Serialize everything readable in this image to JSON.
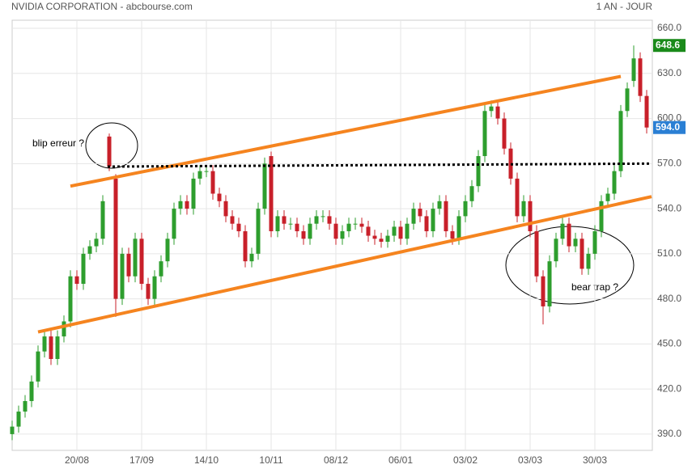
{
  "chart_data": {
    "type": "candlestick",
    "title": "NVIDIA CORPORATION - abcbourse.com",
    "subtitle": "1 AN - JOUR",
    "categories": [
      null,
      null,
      null,
      null,
      null,
      null,
      null,
      null,
      null,
      null,
      "20/08",
      null,
      null,
      null,
      null,
      null,
      null,
      null,
      null,
      null,
      "17/09",
      null,
      null,
      null,
      null,
      null,
      null,
      null,
      null,
      null,
      "14/10",
      null,
      null,
      null,
      null,
      null,
      null,
      null,
      null,
      null,
      "10/11",
      null,
      null,
      null,
      null,
      null,
      null,
      null,
      null,
      null,
      "08/12",
      null,
      null,
      null,
      null,
      null,
      null,
      null,
      null,
      null,
      "06/01",
      null,
      null,
      null,
      null,
      null,
      null,
      null,
      null,
      null,
      "03/02",
      null,
      null,
      null,
      null,
      null,
      null,
      null,
      null,
      null,
      "03/03",
      null,
      null,
      null,
      null,
      null,
      null,
      null,
      null,
      null,
      "30/03",
      null,
      null,
      null,
      null,
      null,
      null,
      null,
      null
    ],
    "open": [
      390,
      395,
      405,
      412,
      425,
      445,
      455,
      440,
      455,
      465,
      495,
      490,
      510,
      515,
      520,
      588,
      560,
      480,
      510,
      495,
      520,
      490,
      480,
      495,
      505,
      520,
      540,
      545,
      540,
      560,
      565,
      565,
      550,
      545,
      535,
      530,
      525,
      505,
      510,
      540,
      575,
      525,
      535,
      530,
      530,
      525,
      520,
      530,
      535,
      535,
      530,
      520,
      525,
      530,
      530,
      528,
      522,
      520,
      518,
      522,
      528,
      520,
      530,
      540,
      535,
      525,
      540,
      545,
      525,
      520,
      535,
      545,
      555,
      575,
      605,
      608,
      600,
      580,
      560,
      535,
      545,
      525,
      495,
      475,
      505,
      520,
      530,
      515,
      520,
      500,
      510,
      525,
      545,
      550,
      565,
      605,
      625,
      640,
      615
    ],
    "high": [
      399,
      409,
      416,
      429,
      449,
      459,
      459,
      459,
      469,
      499,
      499,
      514,
      519,
      524,
      549,
      590,
      563,
      514,
      514,
      524,
      524,
      494,
      499,
      509,
      524,
      544,
      549,
      549,
      564,
      569,
      569,
      569,
      554,
      549,
      539,
      534,
      529,
      514,
      544,
      574,
      578,
      539,
      539,
      534,
      534,
      529,
      534,
      539,
      539,
      539,
      534,
      529,
      534,
      534,
      534,
      532,
      526,
      524,
      526,
      532,
      532,
      534,
      544,
      544,
      539,
      544,
      549,
      549,
      529,
      539,
      549,
      559,
      579,
      609,
      612,
      612,
      604,
      584,
      564,
      549,
      549,
      529,
      499,
      509,
      524,
      534,
      534,
      524,
      524,
      514,
      529,
      549,
      554,
      569,
      609,
      624,
      648.6,
      644,
      619
    ],
    "low": [
      386,
      391,
      401,
      408,
      421,
      441,
      436,
      436,
      451,
      461,
      486,
      486,
      506,
      511,
      516,
      565,
      468,
      476,
      491,
      491,
      486,
      476,
      476,
      491,
      501,
      516,
      536,
      536,
      536,
      556,
      561,
      546,
      541,
      531,
      526,
      521,
      501,
      501,
      506,
      536,
      521,
      521,
      526,
      526,
      521,
      516,
      516,
      526,
      531,
      526,
      516,
      516,
      521,
      526,
      524,
      518,
      516,
      514,
      514,
      518,
      516,
      516,
      526,
      531,
      521,
      521,
      536,
      521,
      516,
      516,
      531,
      541,
      551,
      571,
      601,
      596,
      576,
      556,
      531,
      531,
      521,
      491,
      463,
      471,
      501,
      516,
      511,
      511,
      496,
      496,
      506,
      521,
      541,
      546,
      561,
      601,
      621,
      611,
      590
    ],
    "close": [
      395,
      405,
      412,
      425,
      445,
      455,
      440,
      455,
      465,
      495,
      490,
      510,
      515,
      520,
      545,
      568,
      480,
      510,
      495,
      520,
      490,
      480,
      495,
      505,
      520,
      540,
      545,
      540,
      560,
      565,
      565,
      550,
      545,
      535,
      530,
      525,
      505,
      510,
      540,
      570,
      525,
      535,
      530,
      530,
      525,
      520,
      530,
      535,
      535,
      530,
      520,
      525,
      530,
      530,
      528,
      522,
      520,
      518,
      522,
      528,
      520,
      530,
      540,
      535,
      525,
      540,
      545,
      525,
      520,
      535,
      545,
      555,
      575,
      605,
      608,
      600,
      580,
      560,
      535,
      545,
      525,
      495,
      475,
      505,
      520,
      530,
      515,
      520,
      500,
      510,
      525,
      545,
      550,
      565,
      605,
      620,
      640,
      615,
      594
    ],
    "up_color": "#2e9e2e",
    "down_color": "#c8202a",
    "ylim": [
      379.2,
      665.4
    ],
    "yticks": [
      {
        "value": 390,
        "label": "390.0"
      },
      {
        "value": 420,
        "label": "420.0"
      },
      {
        "value": 450,
        "label": "450.0"
      },
      {
        "value": 480,
        "label": "480.0"
      },
      {
        "value": 510,
        "label": "510.0"
      },
      {
        "value": 540,
        "label": "540.0"
      },
      {
        "value": 570,
        "label": "570.0"
      },
      {
        "value": 600,
        "label": "600.0"
      },
      {
        "value": 630,
        "label": "630.0"
      },
      {
        "value": 660,
        "label": "660.0"
      }
    ],
    "grid": true,
    "high_label": {
      "value": 648.6,
      "label": "648.6",
      "color": "#1a8a1a"
    },
    "last_label": {
      "value": 594,
      "label": "594.0",
      "color": "#2a7fd4"
    },
    "trend_lines": [
      {
        "color": "#f5841f",
        "style": "solid",
        "x": [
          9,
          94
        ],
        "y": [
          555,
          628
        ]
      },
      {
        "color": "#f5841f",
        "style": "solid",
        "x": [
          4,
          98.75
        ],
        "y": [
          458,
          548
        ]
      },
      {
        "color": "#000000",
        "style": "dotted",
        "x": [
          14.75,
          98.75
        ],
        "y": [
          568,
          570
        ]
      }
    ],
    "annotations": [
      "blip erreur ?",
      "bear trap ?"
    ]
  }
}
